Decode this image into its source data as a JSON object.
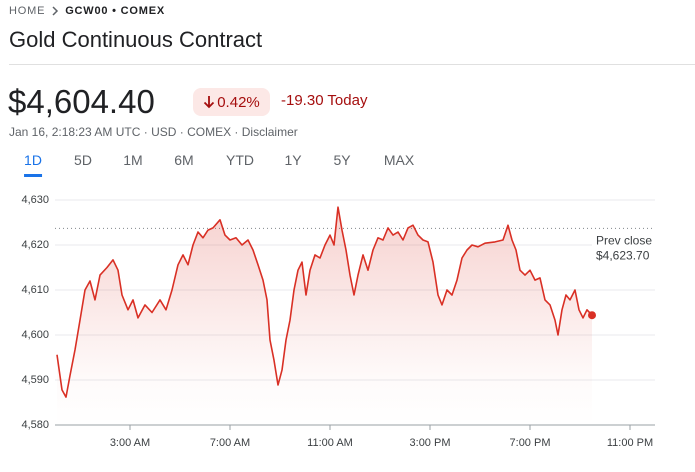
{
  "breadcrumb": [
    "HOME",
    "GCW00 • COMEX"
  ],
  "title": "Gold Continuous Contract",
  "price": "$4,604.40",
  "change_percent": "0.42%",
  "change": "-19.30 Today",
  "info": "Jan 16, 2:18:23 AM UTC · USD · COMEX · Disclaimer",
  "ranges": [
    "1D",
    "5D",
    "1M",
    "6M",
    "YTD",
    "1Y",
    "5Y",
    "MAX"
  ],
  "selected_range": 0,
  "chart_data": {
    "type": "line",
    "color": "#d93025",
    "grid": true,
    "x": [
      0.08,
      0.28,
      0.44,
      0.6,
      0.8,
      1.0,
      1.2,
      1.4,
      1.6,
      1.8,
      2.08,
      2.32,
      2.52,
      2.68,
      2.92,
      3.12,
      3.32,
      3.6,
      3.88,
      4.2,
      4.44,
      4.68,
      4.92,
      5.12,
      5.32,
      5.52,
      5.72,
      5.92,
      6.12,
      6.32,
      6.6,
      6.8,
      7.0,
      7.24,
      7.48,
      7.72,
      7.92,
      8.12,
      8.32,
      8.48,
      8.6,
      8.76,
      8.92,
      9.08,
      9.24,
      9.4,
      9.56,
      9.72,
      9.88,
      10.04,
      10.2,
      10.4,
      10.6,
      10.8,
      11.0,
      11.16,
      11.32,
      11.48,
      11.64,
      11.8,
      11.96,
      12.12,
      12.32,
      12.52,
      12.72,
      12.92,
      13.12,
      13.32,
      13.52,
      13.72,
      13.92,
      14.12,
      14.32,
      14.52,
      14.72,
      14.92,
      15.12,
      15.32,
      15.48,
      15.68,
      15.88,
      16.08,
      16.28,
      16.48,
      16.68,
      16.92,
      17.2,
      17.6,
      17.92,
      18.12,
      18.28,
      18.44,
      18.6,
      18.8,
      19.0,
      19.2,
      19.4,
      19.6,
      19.8,
      20.0,
      20.12,
      20.28,
      20.44,
      20.6,
      20.8,
      20.96,
      21.12,
      21.28,
      21.48
    ],
    "values": [
      4595.6,
      4587.8,
      4586.2,
      4591,
      4596.7,
      4603.3,
      4610,
      4612,
      4607.8,
      4613.3,
      4615,
      4616.7,
      4614.4,
      4608.9,
      4605.6,
      4607.8,
      4603.8,
      4606.7,
      4605,
      4607.8,
      4605.6,
      4610,
      4615.6,
      4617.8,
      4615.6,
      4620,
      4622.9,
      4621.6,
      4623.3,
      4623.8,
      4625.6,
      4622.2,
      4621.1,
      4621.6,
      4620,
      4621.1,
      4618.9,
      4615.6,
      4612.2,
      4607.8,
      4598.9,
      4594.4,
      4588.9,
      4592.2,
      4598.9,
      4603.3,
      4610,
      4614.4,
      4616.2,
      4608.9,
      4614.4,
      4617.8,
      4617.1,
      4620,
      4622.2,
      4620,
      4628.4,
      4623.3,
      4618.9,
      4613.3,
      4608.9,
      4613.3,
      4617.8,
      4614.4,
      4618.9,
      4621.6,
      4621.1,
      4623.8,
      4622.2,
      4622.9,
      4621.1,
      4623.8,
      4624.4,
      4622.2,
      4621.1,
      4620.7,
      4616.2,
      4608.9,
      4606.7,
      4610,
      4608.9,
      4612.2,
      4617.1,
      4618.9,
      4620,
      4619.6,
      4620.4,
      4620.7,
      4621.1,
      4624.4,
      4621.1,
      4618.9,
      4614.4,
      4613.3,
      4614.4,
      4612.2,
      4612.7,
      4607.8,
      4606.7,
      4603.3,
      4600,
      4605.6,
      4608.9,
      4607.8,
      4610,
      4605.6,
      4603.8,
      4605.6,
      4604.4
    ],
    "xlim": [
      0,
      24
    ],
    "xticks": [
      {
        "value": 3,
        "label": "3:00 AM"
      },
      {
        "value": 7,
        "label": "7:00 AM"
      },
      {
        "value": 11,
        "label": "11:00 AM"
      },
      {
        "value": 15,
        "label": "3:00 PM"
      },
      {
        "value": 19,
        "label": "7:00 PM"
      },
      {
        "value": 23,
        "label": "11:00 PM"
      }
    ],
    "ylim": [
      4580,
      4630
    ],
    "yticks": [
      {
        "value": 4580,
        "label": "4,580"
      },
      {
        "value": 4590,
        "label": "4,590"
      },
      {
        "value": 4600,
        "label": "4,600"
      },
      {
        "value": 4610,
        "label": "4,610"
      },
      {
        "value": 4620,
        "label": "4,620"
      },
      {
        "value": 4630,
        "label": "4,630"
      }
    ],
    "prev_close": {
      "label": "Prev close",
      "value": 4623.7,
      "value_label": "$4,623.70"
    }
  }
}
